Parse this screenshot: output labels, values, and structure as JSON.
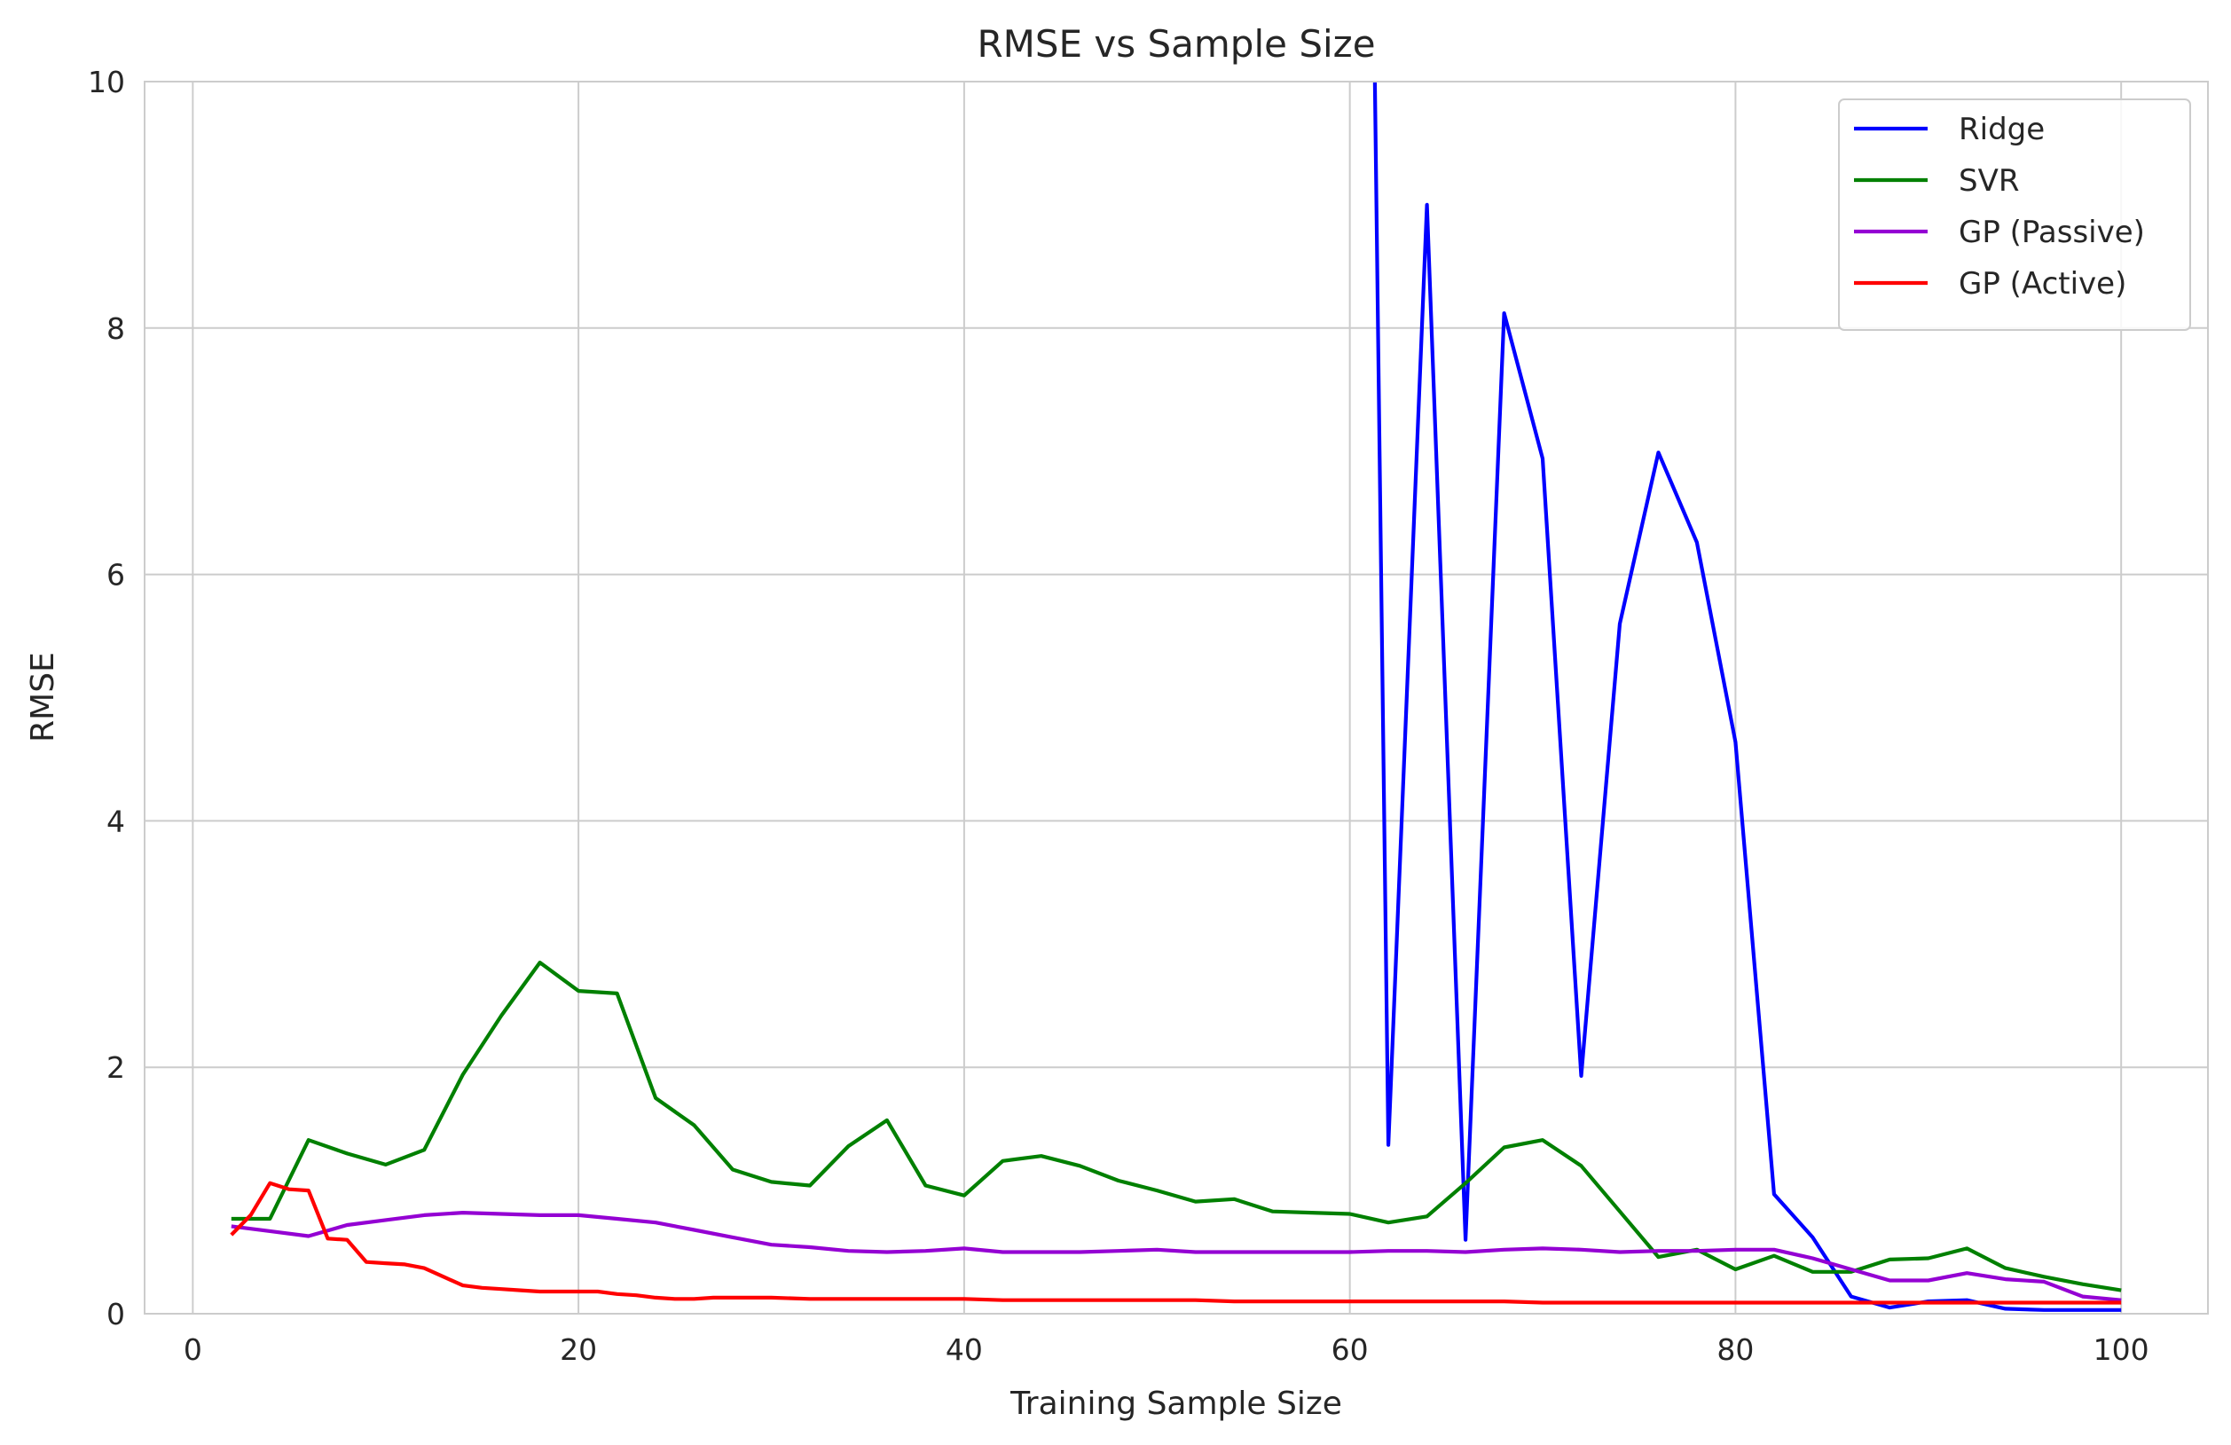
{
  "chart_data": {
    "type": "line",
    "title": "RMSE vs Sample Size",
    "xlabel": "Training Sample Size",
    "ylabel": "RMSE",
    "xlim": [
      -2.5,
      104.5
    ],
    "ylim": [
      0,
      10
    ],
    "xticks": [
      0,
      20,
      40,
      60,
      80,
      100
    ],
    "yticks": [
      0,
      2,
      4,
      6,
      8,
      10
    ],
    "grid": true,
    "legend_position": "top-right",
    "series": [
      {
        "name": "Ridge",
        "color": "#0000ff",
        "x": [
          61.3,
          62,
          64,
          66,
          68,
          70,
          72,
          74,
          76,
          78,
          80,
          82,
          84,
          86,
          88,
          90,
          92,
          94,
          96,
          98,
          100
        ],
        "y": [
          10.0,
          1.37,
          9.0,
          0.6,
          8.12,
          6.94,
          1.93,
          5.6,
          6.99,
          6.26,
          4.64,
          0.97,
          0.62,
          0.14,
          0.05,
          0.1,
          0.11,
          0.04,
          0.03,
          0.03,
          0.03
        ]
      },
      {
        "name": "SVR",
        "color": "#008000",
        "x": [
          2,
          4,
          6,
          8,
          10,
          12,
          14,
          16,
          18,
          20,
          22,
          24,
          26,
          28,
          30,
          32,
          34,
          36,
          38,
          40,
          42,
          44,
          46,
          48,
          50,
          52,
          54,
          56,
          58,
          60,
          62,
          64,
          66,
          68,
          70,
          72,
          74,
          76,
          78,
          80,
          82,
          84,
          86,
          88,
          90,
          92,
          94,
          96,
          98,
          100
        ],
        "y": [
          0.77,
          0.77,
          1.41,
          1.3,
          1.21,
          1.33,
          1.94,
          2.42,
          2.85,
          2.62,
          2.6,
          1.75,
          1.53,
          1.17,
          1.07,
          1.04,
          1.36,
          1.57,
          1.04,
          0.96,
          1.24,
          1.28,
          1.2,
          1.08,
          1.0,
          0.91,
          0.93,
          0.83,
          0.82,
          0.81,
          0.74,
          0.79,
          1.06,
          1.35,
          1.41,
          1.2,
          0.83,
          0.46,
          0.52,
          0.36,
          0.47,
          0.34,
          0.34,
          0.44,
          0.45,
          0.53,
          0.37,
          0.3,
          0.24,
          0.19
        ]
      },
      {
        "name": "GP (Passive)",
        "color": "#9400d3",
        "x": [
          2,
          4,
          6,
          8,
          10,
          12,
          14,
          16,
          18,
          20,
          22,
          24,
          26,
          28,
          30,
          32,
          34,
          36,
          38,
          40,
          42,
          44,
          46,
          48,
          50,
          52,
          54,
          56,
          58,
          60,
          62,
          64,
          66,
          68,
          70,
          72,
          74,
          76,
          78,
          80,
          82,
          84,
          86,
          88,
          90,
          92,
          94,
          96,
          98,
          100
        ],
        "y": [
          0.71,
          0.67,
          0.63,
          0.72,
          0.76,
          0.8,
          0.82,
          0.81,
          0.8,
          0.8,
          0.77,
          0.74,
          0.68,
          0.62,
          0.56,
          0.54,
          0.51,
          0.5,
          0.51,
          0.53,
          0.5,
          0.5,
          0.5,
          0.51,
          0.52,
          0.5,
          0.5,
          0.5,
          0.5,
          0.5,
          0.51,
          0.51,
          0.5,
          0.52,
          0.53,
          0.52,
          0.5,
          0.51,
          0.51,
          0.52,
          0.52,
          0.45,
          0.36,
          0.27,
          0.27,
          0.33,
          0.28,
          0.26,
          0.14,
          0.11
        ]
      },
      {
        "name": "GP (Active)",
        "color": "#ff0000",
        "x": [
          2,
          3,
          4,
          5,
          6,
          7,
          8,
          9,
          10,
          11,
          12,
          13,
          14,
          15,
          16,
          17,
          18,
          19,
          20,
          21,
          22,
          23,
          24,
          25,
          26,
          27,
          28,
          30,
          32,
          34,
          36,
          38,
          40,
          42,
          44,
          46,
          48,
          50,
          52,
          54,
          56,
          58,
          60,
          62,
          64,
          66,
          68,
          70,
          72,
          74,
          76,
          78,
          80,
          82,
          84,
          86,
          88,
          90,
          92,
          94,
          96,
          98,
          100
        ],
        "y": [
          0.64,
          0.8,
          1.06,
          1.01,
          1.0,
          0.61,
          0.6,
          0.42,
          0.41,
          0.4,
          0.37,
          0.3,
          0.23,
          0.21,
          0.2,
          0.19,
          0.18,
          0.18,
          0.18,
          0.18,
          0.16,
          0.15,
          0.13,
          0.12,
          0.12,
          0.13,
          0.13,
          0.13,
          0.12,
          0.12,
          0.12,
          0.12,
          0.12,
          0.11,
          0.11,
          0.11,
          0.11,
          0.11,
          0.11,
          0.1,
          0.1,
          0.1,
          0.1,
          0.1,
          0.1,
          0.1,
          0.1,
          0.09,
          0.09,
          0.09,
          0.09,
          0.09,
          0.09,
          0.09,
          0.09,
          0.09,
          0.09,
          0.09,
          0.09,
          0.09,
          0.09,
          0.09,
          0.09
        ]
      }
    ]
  }
}
